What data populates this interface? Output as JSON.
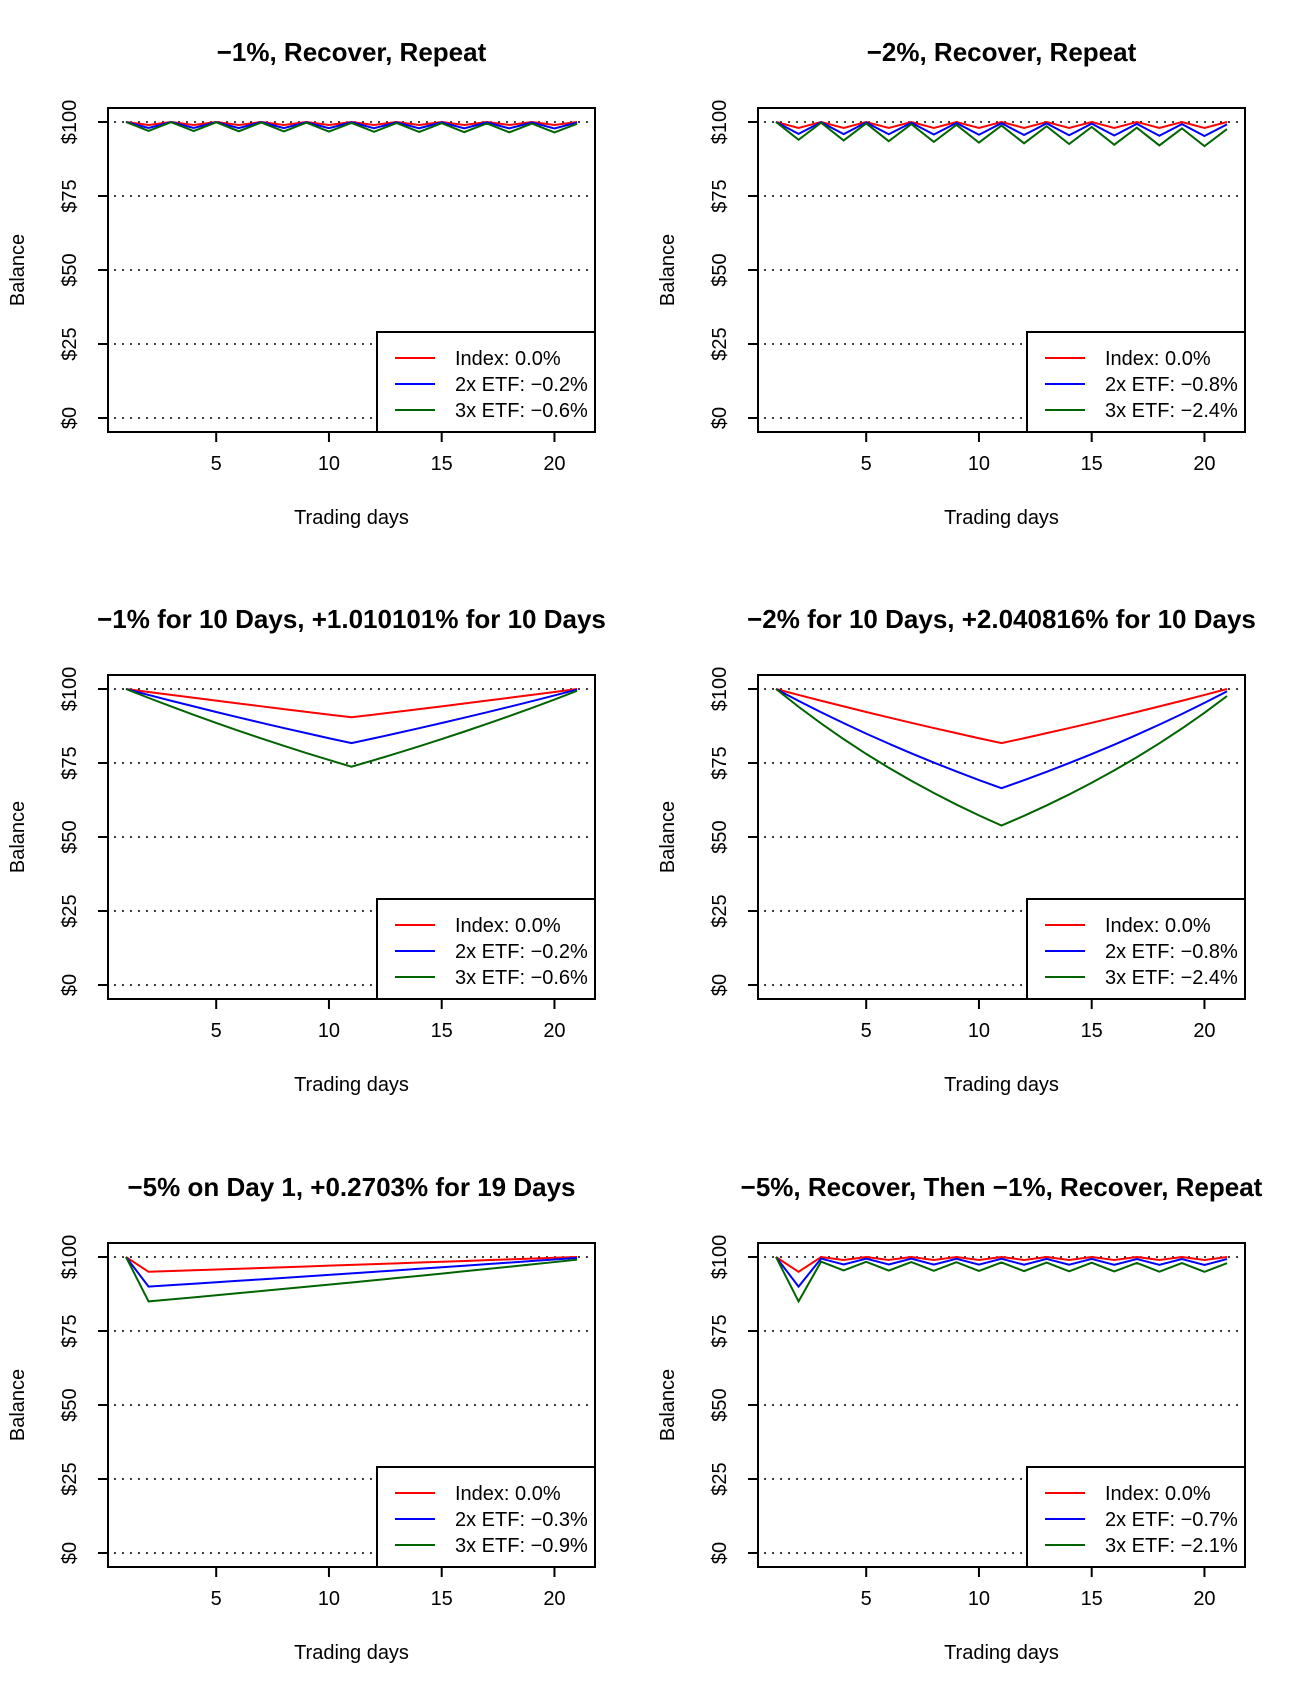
{
  "colors": {
    "index": "#ff0000",
    "etf2x": "#0000ff",
    "etf3x": "#006400",
    "grid": "#000000"
  },
  "chart_data": [
    {
      "type": "line",
      "title": "−1%, Recover, Repeat",
      "xlabel": "Trading days",
      "ylabel": "Balance",
      "xlim": [
        1,
        21
      ],
      "ylim": [
        0,
        100
      ],
      "xticks": [
        5,
        10,
        15,
        20
      ],
      "xtick_labels": [
        "5",
        "10",
        "15",
        "20"
      ],
      "yticks": [
        0,
        25,
        50,
        75,
        100
      ],
      "ytick_labels": [
        "$0",
        "$25",
        "$50",
        "$75",
        "$100"
      ],
      "grid": "horizontal dotted",
      "legend_position": "bottom-right",
      "x": [
        1,
        2,
        3,
        4,
        5,
        6,
        7,
        8,
        9,
        10,
        11,
        12,
        13,
        14,
        15,
        16,
        17,
        18,
        19,
        20,
        21
      ],
      "series": [
        {
          "name": "Index: 0.0%",
          "color": "#ff0000",
          "values": [
            100,
            99,
            100,
            99,
            100,
            99,
            100,
            99,
            100,
            99,
            100,
            99,
            100,
            99,
            100,
            99,
            100,
            99,
            100,
            99,
            100
          ]
        },
        {
          "name": "2x ETF: −0.2%",
          "color": "#0000ff",
          "values": [
            100,
            98,
            99.98,
            97.98,
            99.96,
            97.96,
            99.94,
            97.94,
            99.92,
            97.92,
            99.9,
            97.9,
            99.88,
            97.88,
            99.86,
            97.86,
            99.84,
            97.84,
            99.82,
            97.82,
            99.8
          ]
        },
        {
          "name": "3x ETF: −0.6%",
          "color": "#006400",
          "values": [
            100,
            97,
            99.94,
            96.94,
            99.88,
            96.88,
            99.82,
            96.82,
            99.76,
            96.76,
            99.7,
            96.7,
            99.64,
            96.64,
            99.58,
            96.58,
            99.52,
            96.52,
            99.46,
            96.46,
            99.4
          ]
        }
      ]
    },
    {
      "type": "line",
      "title": "−2%, Recover, Repeat",
      "xlabel": "Trading days",
      "ylabel": "Balance",
      "xlim": [
        1,
        21
      ],
      "ylim": [
        0,
        100
      ],
      "xticks": [
        5,
        10,
        15,
        20
      ],
      "xtick_labels": [
        "5",
        "10",
        "15",
        "20"
      ],
      "yticks": [
        0,
        25,
        50,
        75,
        100
      ],
      "ytick_labels": [
        "$0",
        "$25",
        "$50",
        "$75",
        "$100"
      ],
      "grid": "horizontal dotted",
      "legend_position": "bottom-right",
      "x": [
        1,
        2,
        3,
        4,
        5,
        6,
        7,
        8,
        9,
        10,
        11,
        12,
        13,
        14,
        15,
        16,
        17,
        18,
        19,
        20,
        21
      ],
      "series": [
        {
          "name": "Index: 0.0%",
          "color": "#ff0000",
          "values": [
            100,
            98,
            100,
            98,
            100,
            98,
            100,
            98,
            100,
            98,
            100,
            98,
            100,
            98,
            100,
            98,
            100,
            98,
            100,
            98,
            100
          ]
        },
        {
          "name": "2x ETF: −0.8%",
          "color": "#0000ff",
          "values": [
            100,
            96,
            99.92,
            95.92,
            99.84,
            95.84,
            99.76,
            95.76,
            99.68,
            95.68,
            99.6,
            95.6,
            99.52,
            95.52,
            99.44,
            95.44,
            99.36,
            95.36,
            99.28,
            95.28,
            99.2
          ]
        },
        {
          "name": "3x ETF: −2.4%",
          "color": "#006400",
          "values": [
            100,
            94,
            99.76,
            93.76,
            99.52,
            93.52,
            99.28,
            93.28,
            99.04,
            93.04,
            98.8,
            92.8,
            98.56,
            92.56,
            98.32,
            92.32,
            98.08,
            92.08,
            97.84,
            91.84,
            97.6
          ]
        }
      ]
    },
    {
      "type": "line",
      "title": "−1% for 10 Days, +1.010101% for 10 Days",
      "xlabel": "Trading days",
      "ylabel": "Balance",
      "xlim": [
        1,
        21
      ],
      "ylim": [
        0,
        100
      ],
      "xticks": [
        5,
        10,
        15,
        20
      ],
      "xtick_labels": [
        "5",
        "10",
        "15",
        "20"
      ],
      "yticks": [
        0,
        25,
        50,
        75,
        100
      ],
      "ytick_labels": [
        "$0",
        "$25",
        "$50",
        "$75",
        "$100"
      ],
      "grid": "horizontal dotted",
      "legend_position": "bottom-right",
      "x": [
        1,
        2,
        3,
        4,
        5,
        6,
        7,
        8,
        9,
        10,
        11,
        12,
        13,
        14,
        15,
        16,
        17,
        18,
        19,
        20,
        21
      ],
      "series": [
        {
          "name": "Index: 0.0%",
          "color": "#ff0000",
          "values": [
            100,
            99,
            98.01,
            97.03,
            96.06,
            95.1,
            94.15,
            93.21,
            92.27,
            91.35,
            90.44,
            91.35,
            92.27,
            93.21,
            94.15,
            95.1,
            96.06,
            97.03,
            98.01,
            99,
            100
          ]
        },
        {
          "name": "2x ETF: −0.2%",
          "color": "#0000ff",
          "values": [
            100,
            98,
            96.04,
            94.12,
            92.24,
            90.39,
            88.58,
            86.81,
            85.08,
            83.37,
            81.71,
            83.36,
            85.04,
            86.76,
            88.51,
            90.3,
            92.13,
            93.99,
            95.88,
            97.82,
            99.8
          ]
        },
        {
          "name": "3x ETF: −0.6%",
          "color": "#006400",
          "values": [
            100,
            97,
            94.09,
            91.27,
            88.53,
            85.87,
            83.3,
            80.8,
            78.37,
            76.02,
            73.74,
            75.97,
            78.27,
            80.64,
            83.08,
            85.6,
            88.19,
            90.86,
            93.61,
            96.45,
            99.4
          ]
        }
      ]
    },
    {
      "type": "line",
      "title": "−2% for 10 Days, +2.040816% for 10 Days",
      "xlabel": "Trading days",
      "ylabel": "Balance",
      "xlim": [
        1,
        21
      ],
      "ylim": [
        0,
        100
      ],
      "xticks": [
        5,
        10,
        15,
        20
      ],
      "xtick_labels": [
        "5",
        "10",
        "15",
        "20"
      ],
      "yticks": [
        0,
        25,
        50,
        75,
        100
      ],
      "ytick_labels": [
        "$0",
        "$25",
        "$50",
        "$75",
        "$100"
      ],
      "grid": "horizontal dotted",
      "legend_position": "bottom-right",
      "x": [
        1,
        2,
        3,
        4,
        5,
        6,
        7,
        8,
        9,
        10,
        11,
        12,
        13,
        14,
        15,
        16,
        17,
        18,
        19,
        20,
        21
      ],
      "series": [
        {
          "name": "Index: 0.0%",
          "color": "#ff0000",
          "values": [
            100,
            98,
            96.04,
            94.12,
            92.24,
            90.39,
            88.58,
            86.81,
            85.08,
            83.37,
            81.71,
            83.37,
            85.08,
            86.81,
            88.58,
            90.39,
            92.24,
            94.12,
            96.04,
            98,
            100
          ]
        },
        {
          "name": "2x ETF: −0.8%",
          "color": "#0000ff",
          "values": [
            100,
            96,
            92.16,
            88.47,
            84.93,
            81.54,
            78.28,
            75.14,
            72.14,
            69.25,
            66.48,
            69.2,
            72.02,
            74.96,
            78.02,
            81.2,
            84.52,
            87.97,
            91.56,
            95.3,
            99.2
          ]
        },
        {
          "name": "3x ETF: −2.4%",
          "color": "#006400",
          "values": [
            100,
            94,
            88.36,
            83.06,
            78.07,
            73.39,
            68.99,
            64.85,
            60.96,
            57.3,
            53.86,
            57.16,
            60.66,
            64.37,
            68.31,
            72.5,
            76.94,
            81.65,
            86.65,
            91.95,
            97.6
          ]
        }
      ]
    },
    {
      "type": "line",
      "title": "−5% on Day 1, +0.2703% for 19 Days",
      "xlabel": "Trading days",
      "ylabel": "Balance",
      "xlim": [
        1,
        21
      ],
      "ylim": [
        0,
        100
      ],
      "xticks": [
        5,
        10,
        15,
        20
      ],
      "xtick_labels": [
        "5",
        "10",
        "15",
        "20"
      ],
      "yticks": [
        0,
        25,
        50,
        75,
        100
      ],
      "ytick_labels": [
        "$0",
        "$25",
        "$50",
        "$75",
        "$100"
      ],
      "grid": "horizontal dotted",
      "legend_position": "bottom-right",
      "x": [
        1,
        2,
        3,
        4,
        5,
        6,
        7,
        8,
        9,
        10,
        11,
        12,
        13,
        14,
        15,
        16,
        17,
        18,
        19,
        20,
        21
      ],
      "series": [
        {
          "name": "Index: 0.0%",
          "color": "#ff0000",
          "values": [
            100,
            95,
            95.26,
            95.51,
            95.77,
            96.03,
            96.29,
            96.55,
            96.81,
            97.07,
            97.34,
            97.6,
            97.86,
            98.13,
            98.39,
            98.66,
            98.93,
            99.19,
            99.46,
            99.73,
            100
          ]
        },
        {
          "name": "2x ETF: −0.3%",
          "color": "#0000ff",
          "values": [
            100,
            90,
            90.49,
            90.98,
            91.47,
            91.96,
            92.46,
            92.96,
            93.46,
            93.97,
            94.48,
            94.99,
            95.5,
            96.02,
            96.54,
            97.06,
            97.58,
            98.11,
            98.64,
            99.17,
            99.7
          ]
        },
        {
          "name": "3x ETF: −0.9%",
          "color": "#006400",
          "values": [
            100,
            85,
            85.69,
            86.38,
            87.08,
            87.79,
            88.5,
            89.22,
            89.94,
            90.67,
            91.4,
            92.14,
            92.89,
            93.64,
            94.4,
            95.17,
            95.94,
            96.71,
            97.5,
            98.29,
            99.1
          ]
        }
      ]
    },
    {
      "type": "line",
      "title": "−5%, Recover, Then −1%, Recover, Repeat",
      "xlabel": "Trading days",
      "ylabel": "Balance",
      "xlim": [
        1,
        21
      ],
      "ylim": [
        0,
        100
      ],
      "xticks": [
        5,
        10,
        15,
        20
      ],
      "xtick_labels": [
        "5",
        "10",
        "15",
        "20"
      ],
      "yticks": [
        0,
        25,
        50,
        75,
        100
      ],
      "ytick_labels": [
        "$0",
        "$25",
        "$50",
        "$75",
        "$100"
      ],
      "grid": "horizontal dotted",
      "legend_position": "bottom-right",
      "x": [
        1,
        2,
        3,
        4,
        5,
        6,
        7,
        8,
        9,
        10,
        11,
        12,
        13,
        14,
        15,
        16,
        17,
        18,
        19,
        20,
        21
      ],
      "series": [
        {
          "name": "Index: 0.0%",
          "color": "#ff0000",
          "values": [
            100,
            95,
            100,
            99,
            100,
            99,
            100,
            99,
            100,
            99,
            100,
            99,
            100,
            99,
            100,
            99,
            100,
            99,
            100,
            99,
            100
          ]
        },
        {
          "name": "2x ETF: −0.7%",
          "color": "#0000ff",
          "values": [
            100,
            90,
            99.47,
            97.48,
            99.45,
            97.46,
            99.43,
            97.44,
            99.41,
            97.42,
            99.39,
            97.4,
            99.37,
            97.38,
            99.35,
            97.36,
            99.33,
            97.34,
            99.31,
            97.32,
            99.3
          ]
        },
        {
          "name": "3x ETF: −2.1%",
          "color": "#006400",
          "values": [
            100,
            85,
            98.42,
            95.47,
            98.36,
            95.41,
            98.3,
            95.35,
            98.24,
            95.29,
            98.18,
            95.23,
            98.12,
            95.17,
            98.06,
            95.11,
            98,
            95.05,
            97.94,
            94.99,
            97.9
          ]
        }
      ]
    }
  ]
}
